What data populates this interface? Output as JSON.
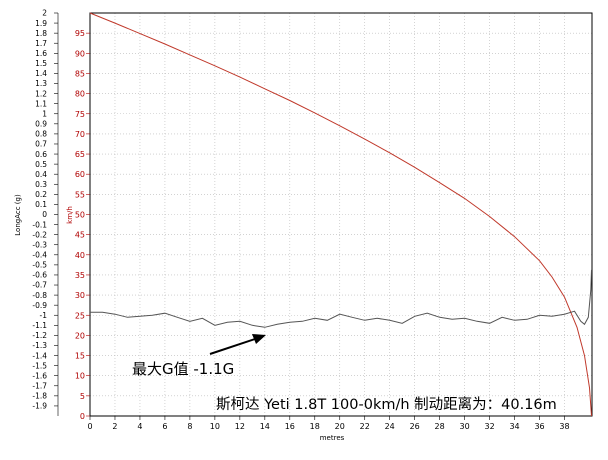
{
  "chart_data": {
    "type": "line",
    "xlabel": "metres",
    "ylabel_left": "LongAcc (g)",
    "ylabel_right": "km/h",
    "xlim": [
      0,
      40.2
    ],
    "ylim_left": [
      -2,
      2
    ],
    "ylim_right": [
      0,
      100
    ],
    "grid": true,
    "x_ticks": [
      0,
      2,
      4,
      6,
      8,
      10,
      12,
      14,
      16,
      18,
      20,
      22,
      24,
      26,
      28,
      30,
      32,
      34,
      36,
      38
    ],
    "left_ticks": [
      "2",
      "1.9",
      "1.8",
      "1.7",
      "1.6",
      "1.5",
      "1.4",
      "1.3",
      "1.2",
      "1.1",
      "1",
      "0.9",
      "0.8",
      "0.7",
      "0.6",
      "0.5",
      "0.4",
      "0.3",
      "0.2",
      "0.1",
      "0",
      "-0.1",
      "-0.2",
      "-0.3",
      "-0.4",
      "-0.5",
      "-0.6",
      "-0.7",
      "-0.8",
      "-0.9",
      "-1",
      "-1.1",
      "-1.2",
      "-1.3",
      "-1.4",
      "-1.5",
      "-1.6",
      "-1.7",
      "-1.8",
      "-1.9"
    ],
    "right_ticks": [
      "95",
      "90",
      "85",
      "80",
      "75",
      "70",
      "65",
      "60",
      "55",
      "50",
      "45",
      "40",
      "35",
      "30",
      "25",
      "20",
      "15",
      "10",
      "5",
      "0"
    ],
    "series": [
      {
        "axis": "right",
        "color": "#c0392b",
        "points": [
          [
            0,
            100
          ],
          [
            2,
            97.5
          ],
          [
            4,
            94.9
          ],
          [
            6,
            92.3
          ],
          [
            8,
            89.6
          ],
          [
            10,
            86.9
          ],
          [
            12,
            84.1
          ],
          [
            14,
            81.2
          ],
          [
            16,
            78.3
          ],
          [
            18,
            75.2
          ],
          [
            20,
            72.0
          ],
          [
            22,
            68.7
          ],
          [
            24,
            65.3
          ],
          [
            26,
            61.7
          ],
          [
            28,
            57.9
          ],
          [
            30,
            54.0
          ],
          [
            32,
            49.5
          ],
          [
            34,
            44.5
          ],
          [
            36,
            38.5
          ],
          [
            37,
            34.5
          ],
          [
            38,
            29.5
          ],
          [
            39,
            22.0
          ],
          [
            39.6,
            15.0
          ],
          [
            40.0,
            7.0
          ],
          [
            40.16,
            0
          ]
        ]
      },
      {
        "axis": "left",
        "color": "#555555",
        "points": [
          [
            0,
            -0.97
          ],
          [
            1,
            -0.97
          ],
          [
            2,
            -0.99
          ],
          [
            3,
            -1.02
          ],
          [
            4,
            -1.01
          ],
          [
            5,
            -1.0
          ],
          [
            6,
            -0.98
          ],
          [
            7,
            -1.02
          ],
          [
            8,
            -1.06
          ],
          [
            9,
            -1.03
          ],
          [
            10,
            -1.1
          ],
          [
            11,
            -1.07
          ],
          [
            12,
            -1.06
          ],
          [
            13,
            -1.1
          ],
          [
            14,
            -1.12
          ],
          [
            15,
            -1.09
          ],
          [
            16,
            -1.07
          ],
          [
            17,
            -1.06
          ],
          [
            18,
            -1.03
          ],
          [
            19,
            -1.05
          ],
          [
            20,
            -0.99
          ],
          [
            21,
            -1.02
          ],
          [
            22,
            -1.05
          ],
          [
            23,
            -1.03
          ],
          [
            24,
            -1.05
          ],
          [
            25,
            -1.08
          ],
          [
            26,
            -1.01
          ],
          [
            27,
            -0.98
          ],
          [
            28,
            -1.02
          ],
          [
            29,
            -1.04
          ],
          [
            30,
            -1.03
          ],
          [
            31,
            -1.06
          ],
          [
            32,
            -1.08
          ],
          [
            33,
            -1.02
          ],
          [
            34,
            -1.05
          ],
          [
            35,
            -1.04
          ],
          [
            36,
            -1.0
          ],
          [
            37,
            -1.01
          ],
          [
            38,
            -0.99
          ],
          [
            38.8,
            -0.96
          ],
          [
            39.3,
            -1.06
          ],
          [
            39.6,
            -1.09
          ],
          [
            39.9,
            -1.02
          ],
          [
            40.1,
            -0.75
          ],
          [
            40.16,
            -0.55
          ]
        ]
      }
    ],
    "annotations": {
      "max_g": "最大G值 -1.1G",
      "summary": "斯柯达 Yeti 1.8T 100-0km/h 制动距离为：40.16m"
    }
  }
}
